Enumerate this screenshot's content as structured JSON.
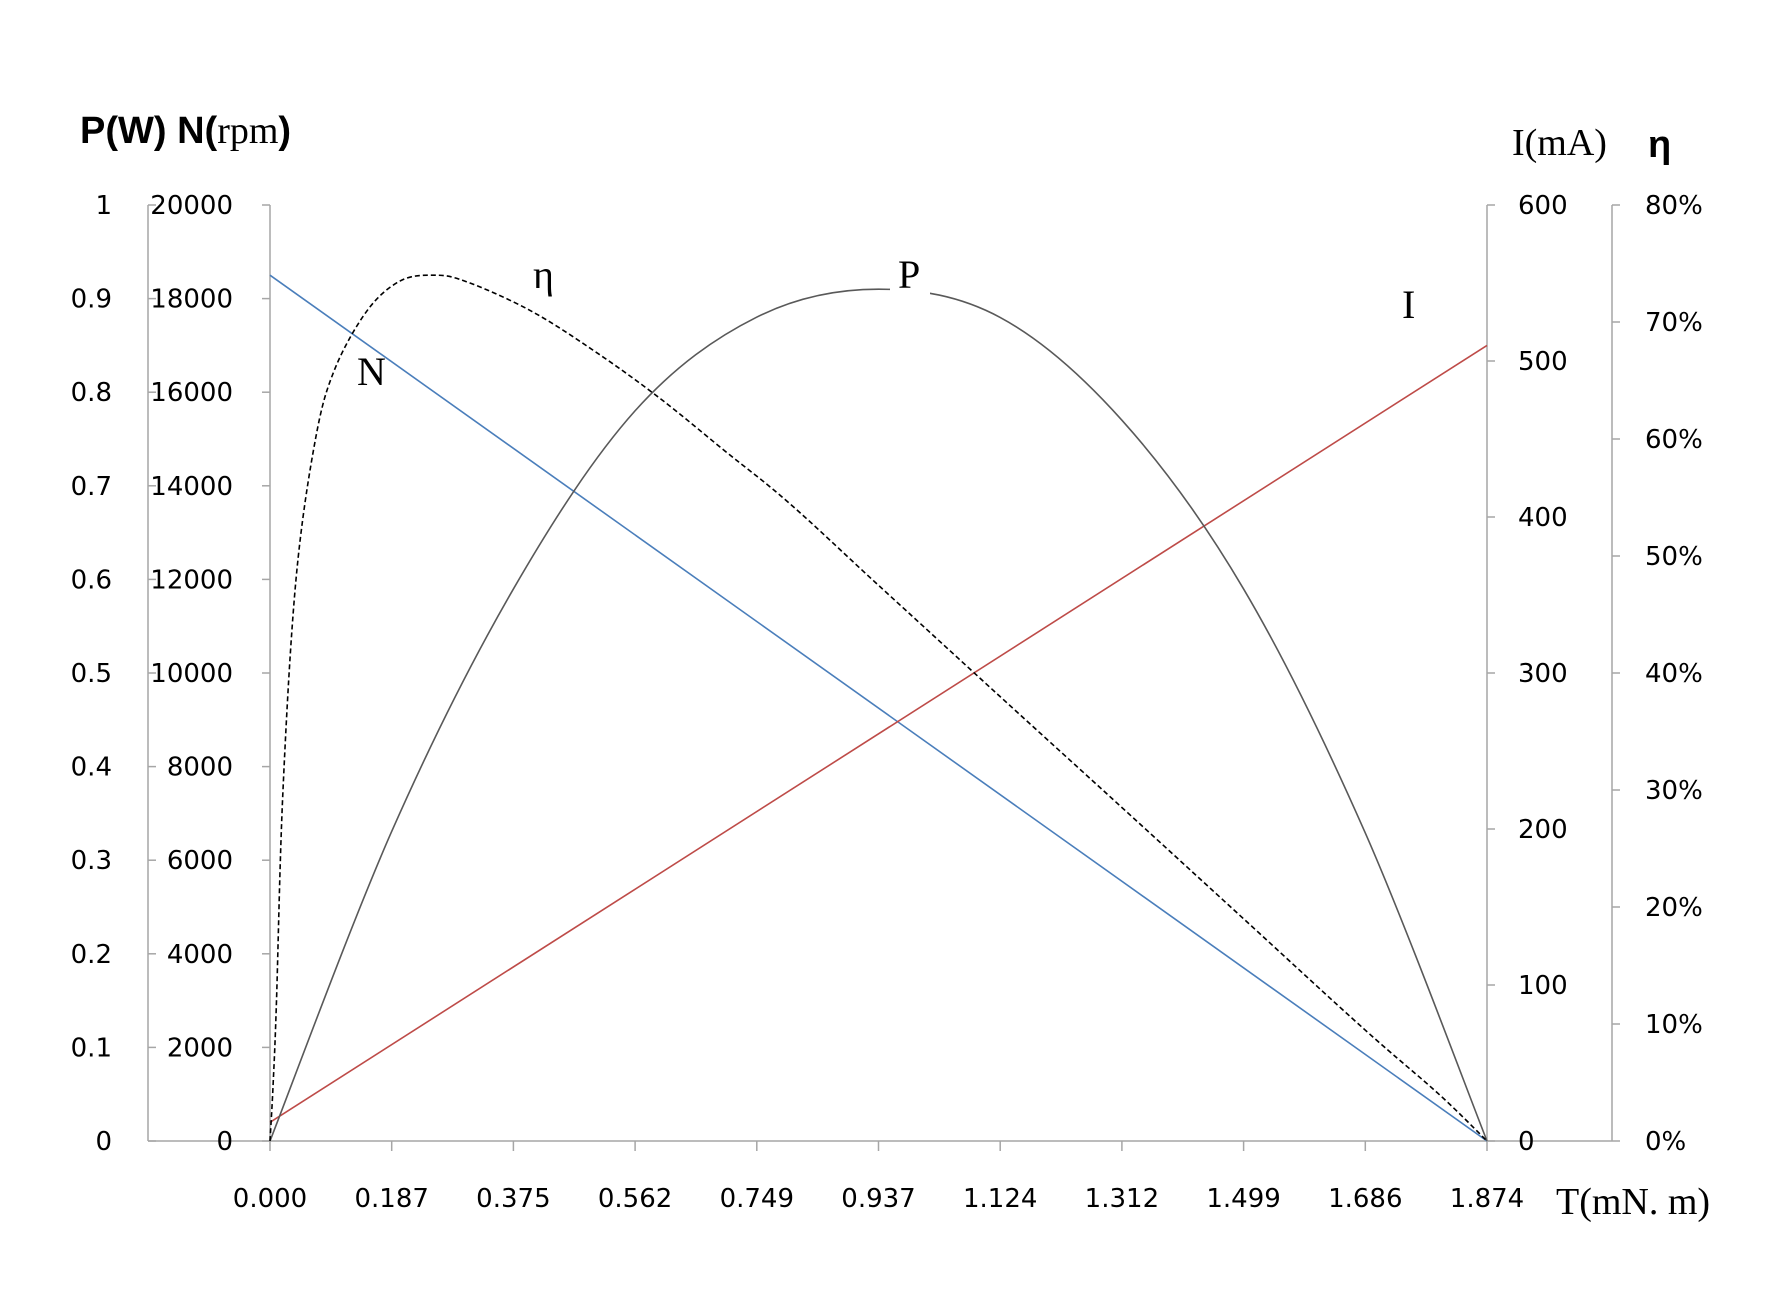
{
  "chart_data": {
    "type": "line",
    "axis_titles": {
      "left_bold": "P(W) N(",
      "left_serif": "rpm",
      "left_close": ")",
      "right_current": "I(mA)",
      "right_eta": "η",
      "x": "T(mN. m)"
    },
    "x_ticks": [
      "0.000",
      "0.187",
      "0.375",
      "0.562",
      "0.749",
      "0.937",
      "1.124",
      "1.312",
      "1.499",
      "1.686",
      "1.874"
    ],
    "x_range": [
      0,
      1.874
    ],
    "axes": {
      "P": {
        "ticks": [
          "0",
          "0.1",
          "0.2",
          "0.3",
          "0.4",
          "0.5",
          "0.6",
          "0.7",
          "0.8",
          "0.9",
          "1"
        ],
        "range": [
          0,
          1
        ]
      },
      "N": {
        "ticks": [
          "0",
          "2000",
          "4000",
          "6000",
          "8000",
          "10000",
          "12000",
          "14000",
          "16000",
          "18000",
          "20000"
        ],
        "range": [
          0,
          20000
        ]
      },
      "I": {
        "ticks": [
          "0",
          "100",
          "200",
          "300",
          "400",
          "500",
          "600"
        ],
        "range": [
          0,
          600
        ]
      },
      "eta": {
        "ticks": [
          "0%",
          "10%",
          "20%",
          "30%",
          "40%",
          "50%",
          "60%",
          "70%",
          "80%"
        ],
        "range": [
          0,
          0.8
        ]
      }
    },
    "series": [
      {
        "name": "N",
        "axis": "N",
        "color": "#4a7ebb",
        "style": "solid",
        "x": [
          0,
          1.874
        ],
        "y": [
          18500,
          0
        ]
      },
      {
        "name": "I",
        "axis": "I",
        "color": "#be4b48",
        "style": "solid",
        "x": [
          0,
          1.874
        ],
        "y": [
          12,
          510
        ]
      },
      {
        "name": "P",
        "axis": "P",
        "color": "#595959",
        "style": "solid",
        "x": [
          0,
          0.187,
          0.375,
          0.562,
          0.749,
          0.937,
          1.124,
          1.312,
          1.499,
          1.686,
          1.874
        ],
        "y": [
          0,
          0.33,
          0.59,
          0.78,
          0.88,
          0.91,
          0.88,
          0.77,
          0.59,
          0.33,
          0
        ]
      },
      {
        "name": "η",
        "axis": "eta",
        "color": "#000000",
        "style": "dashed",
        "x": [
          0,
          0.005,
          0.01,
          0.02,
          0.04,
          0.07,
          0.1,
          0.15,
          0.2,
          0.25,
          0.3,
          0.4,
          0.5,
          0.6,
          0.7,
          0.8,
          0.937,
          1.124,
          1.312,
          1.499,
          1.686,
          1.8,
          1.874
        ],
        "y": [
          0,
          0.05,
          0.12,
          0.3,
          0.48,
          0.6,
          0.66,
          0.71,
          0.735,
          0.74,
          0.735,
          0.71,
          0.675,
          0.635,
          0.59,
          0.545,
          0.475,
          0.38,
          0.285,
          0.19,
          0.095,
          0.04,
          0
        ]
      }
    ],
    "labels": [
      {
        "text": "N",
        "series": "N"
      },
      {
        "text": "η",
        "series": "η"
      },
      {
        "text": "P",
        "series": "P"
      },
      {
        "text": "I",
        "series": "I"
      }
    ],
    "colors": {
      "N": "#4a7ebb",
      "I": "#be4b48",
      "P": "#595959",
      "eta": "#000000",
      "axis": "#a6a6a6"
    }
  }
}
